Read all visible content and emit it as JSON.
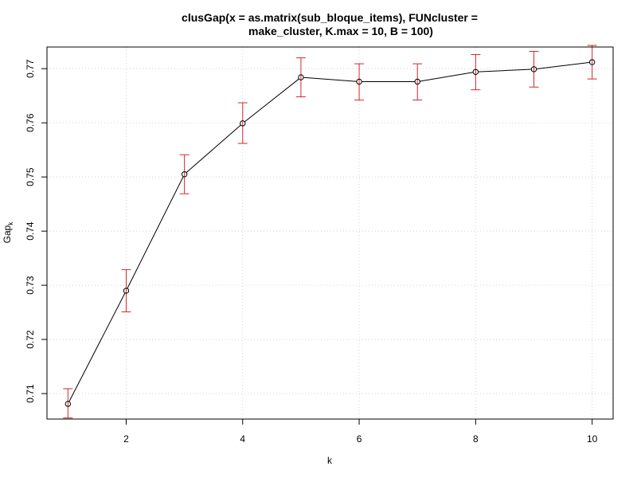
{
  "chart_data": {
    "type": "line",
    "title_lines": [
      "clusGap(x = as.matrix(sub_bloque_items), FUNcluster =",
      "make_cluster, K.max = 10, B = 100)"
    ],
    "xlabel": "k",
    "ylabel_main": "Gap",
    "ylabel_sub": "k",
    "x": [
      1,
      2,
      3,
      4,
      5,
      6,
      7,
      8,
      9,
      10
    ],
    "y": [
      0.7081,
      0.729,
      0.7505,
      0.7599,
      0.7684,
      0.7676,
      0.7676,
      0.7694,
      0.7699,
      0.7712
    ],
    "error_low": [
      0.7055,
      0.7251,
      0.7469,
      0.7562,
      0.7648,
      0.7642,
      0.7642,
      0.7661,
      0.7666,
      0.7681
    ],
    "error_high": [
      0.7109,
      0.7329,
      0.7541,
      0.7637,
      0.772,
      0.7709,
      0.7709,
      0.7726,
      0.7732,
      0.7743
    ],
    "xlim": [
      0.64,
      10.36
    ],
    "ylim": [
      0.7053,
      0.774
    ],
    "x_ticks": [
      2,
      4,
      6,
      8,
      10
    ],
    "y_ticks": [
      0.71,
      0.72,
      0.73,
      0.74,
      0.75,
      0.76,
      0.77
    ],
    "y_tick_labels": [
      "0.71",
      "0.72",
      "0.73",
      "0.74",
      "0.75",
      "0.76",
      "0.77"
    ],
    "x_tick_labels": [
      "2",
      "4",
      "6",
      "8",
      "10"
    ],
    "grid": true,
    "line_color": "#000000",
    "error_bar_color": "#d62728",
    "grid_color": "#d3d3d3"
  }
}
